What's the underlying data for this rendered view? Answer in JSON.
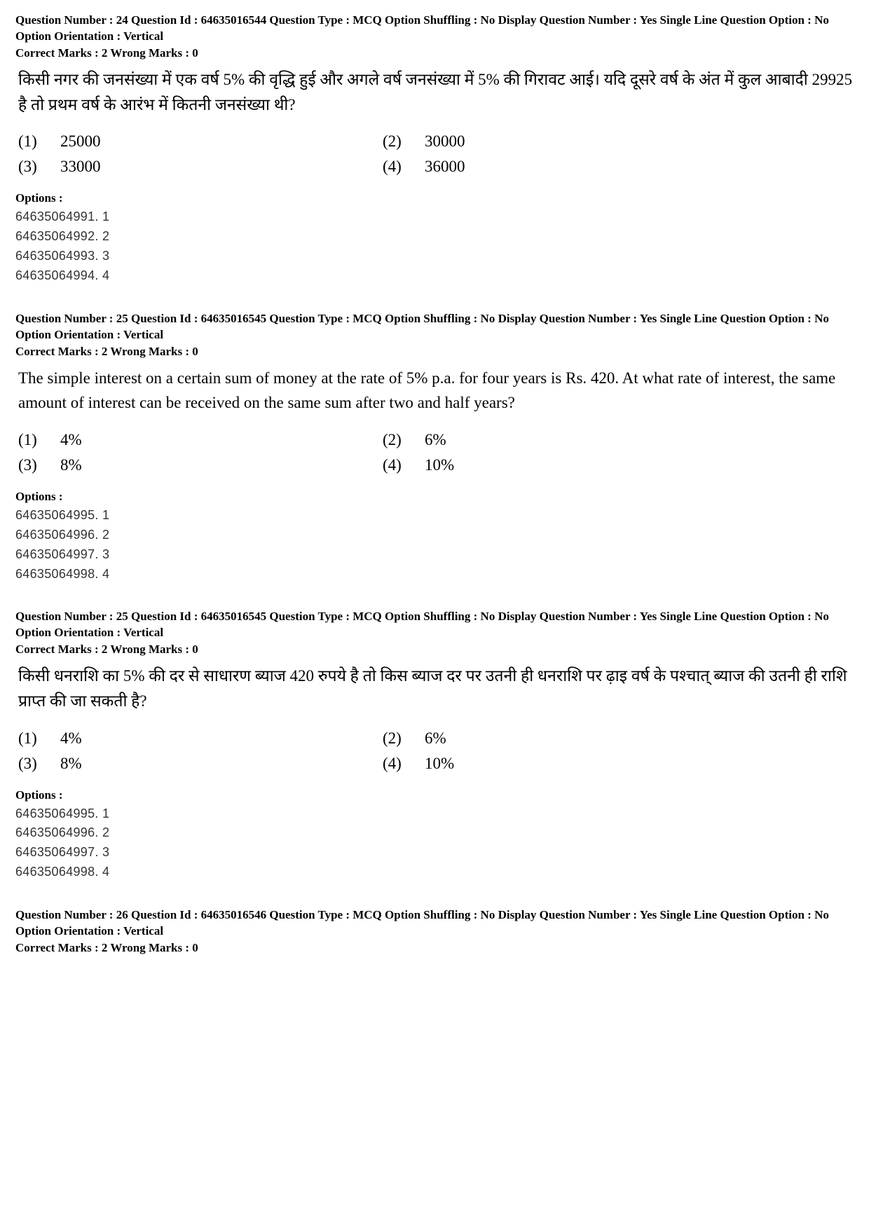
{
  "questions": [
    {
      "meta": {
        "qnum_label": "Question Number :",
        "qnum": "24",
        "qid_label": "Question Id :",
        "qid": "64635016544",
        "qtype_label": "Question Type :",
        "qtype": "MCQ",
        "shuffle_label": "Option Shuffling :",
        "shuffle": "No",
        "display_label": "Display Question Number :",
        "display": "Yes",
        "single_label": "Single Line Question Option :",
        "single": "No",
        "orient_label": "Option Orientation :",
        "orient": "Vertical"
      },
      "marks": {
        "correct_label": "Correct Marks :",
        "correct": "2",
        "wrong_label": "Wrong Marks :",
        "wrong": "0"
      },
      "text": "किसी नगर की जनसंख्या में एक वर्ष 5% की वृद्धि हुई और अगले वर्ष जनसंख्या में 5% की गिरावट आई। यदि दूसरे वर्ष के अंत में कुल आबादी 29925 है तो प्रथम वर्ष के आरंभ में कितनी जनसंख्या थी?",
      "choices": [
        {
          "n": "(1)",
          "v": "25000"
        },
        {
          "n": "(2)",
          "v": "30000"
        },
        {
          "n": "(3)",
          "v": "33000"
        },
        {
          "n": "(4)",
          "v": "36000"
        }
      ],
      "options_label": "Options :",
      "options": [
        "64635064991. 1",
        "64635064992. 2",
        "64635064993. 3",
        "64635064994. 4"
      ]
    },
    {
      "meta": {
        "qnum_label": "Question Number :",
        "qnum": "25",
        "qid_label": "Question Id :",
        "qid": "64635016545",
        "qtype_label": "Question Type :",
        "qtype": "MCQ",
        "shuffle_label": "Option Shuffling :",
        "shuffle": "No",
        "display_label": "Display Question Number :",
        "display": "Yes",
        "single_label": "Single Line Question Option :",
        "single": "No",
        "orient_label": "Option Orientation :",
        "orient": "Vertical"
      },
      "marks": {
        "correct_label": "Correct Marks :",
        "correct": "2",
        "wrong_label": "Wrong Marks :",
        "wrong": "0"
      },
      "text": "The simple interest on a certain sum of money at the rate of 5% p.a. for four years is Rs. 420. At what rate of interest, the same amount of interest can be received on the same sum after two and half years?",
      "choices": [
        {
          "n": "(1)",
          "v": "4%"
        },
        {
          "n": "(2)",
          "v": "6%"
        },
        {
          "n": "(3)",
          "v": "8%"
        },
        {
          "n": "(4)",
          "v": "10%"
        }
      ],
      "options_label": "Options :",
      "options": [
        "64635064995. 1",
        "64635064996. 2",
        "64635064997. 3",
        "64635064998. 4"
      ]
    },
    {
      "meta": {
        "qnum_label": "Question Number :",
        "qnum": "25",
        "qid_label": "Question Id :",
        "qid": "64635016545",
        "qtype_label": "Question Type :",
        "qtype": "MCQ",
        "shuffle_label": "Option Shuffling :",
        "shuffle": "No",
        "display_label": "Display Question Number :",
        "display": "Yes",
        "single_label": "Single Line Question Option :",
        "single": "No",
        "orient_label": "Option Orientation :",
        "orient": "Vertical"
      },
      "marks": {
        "correct_label": "Correct Marks :",
        "correct": "2",
        "wrong_label": "Wrong Marks :",
        "wrong": "0"
      },
      "text": "किसी धनराशि का 5% की दर से साधारण ब्याज 420 रुपये है तो किस ब्याज दर पर उतनी ही धनराशि पर ढ़ाइ वर्ष के पश्चात् ब्याज की उतनी ही राशि प्राप्त की जा सकती है?",
      "choices": [
        {
          "n": "(1)",
          "v": "4%"
        },
        {
          "n": "(2)",
          "v": "6%"
        },
        {
          "n": "(3)",
          "v": "8%"
        },
        {
          "n": "(4)",
          "v": "10%"
        }
      ],
      "options_label": "Options :",
      "options": [
        "64635064995. 1",
        "64635064996. 2",
        "64635064997. 3",
        "64635064998. 4"
      ]
    },
    {
      "meta": {
        "qnum_label": "Question Number :",
        "qnum": "26",
        "qid_label": "Question Id :",
        "qid": "64635016546",
        "qtype_label": "Question Type :",
        "qtype": "MCQ",
        "shuffle_label": "Option Shuffling :",
        "shuffle": "No",
        "display_label": "Display Question Number :",
        "display": "Yes",
        "single_label": "Single Line Question Option :",
        "single": "No",
        "orient_label": "Option Orientation :",
        "orient": "Vertical"
      },
      "marks": {
        "correct_label": "Correct Marks :",
        "correct": "2",
        "wrong_label": "Wrong Marks :",
        "wrong": "0"
      },
      "text": null,
      "choices": [],
      "options_label": null,
      "options": []
    }
  ]
}
